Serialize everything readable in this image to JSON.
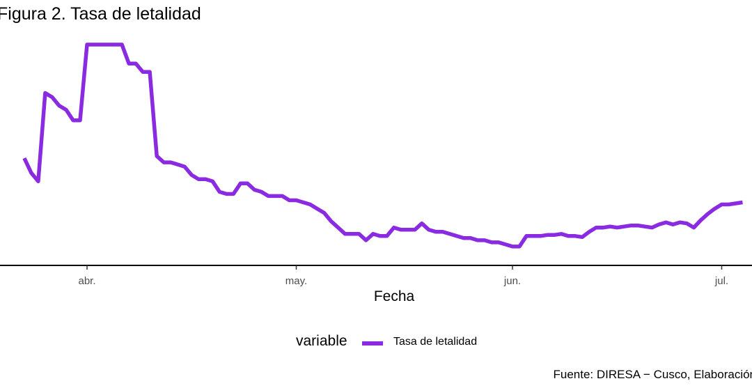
{
  "chart_data": {
    "type": "line",
    "title": "Figura 2. Tasa de letalidad",
    "xlabel": "Fecha",
    "ylabel": "",
    "caption": "Fuente: DIRESA − Cusco, Elaboración",
    "legend": {
      "title": "variable",
      "position": "bottom"
    },
    "grid": false,
    "x_ticks": [
      {
        "label": "abr.",
        "date": "2020-04-01"
      },
      {
        "label": "may.",
        "date": "2020-05-01"
      },
      {
        "label": "jun.",
        "date": "2020-06-01"
      },
      {
        "label": "jul.",
        "date": "2020-07-01"
      }
    ],
    "xlim": [
      "2020-03-20",
      "2020-07-05"
    ],
    "ylim": [
      0,
      10
    ],
    "colors": {
      "series": "#8a2be2",
      "axis": "#000000"
    },
    "series": [
      {
        "name": "Tasa de letalidad",
        "x": [
          "2020-03-23",
          "2020-03-24",
          "2020-03-25",
          "2020-03-26",
          "2020-03-27",
          "2020-03-28",
          "2020-03-29",
          "2020-03-30",
          "2020-03-31",
          "2020-04-01",
          "2020-04-02",
          "2020-04-03",
          "2020-04-04",
          "2020-04-05",
          "2020-04-06",
          "2020-04-07",
          "2020-04-08",
          "2020-04-09",
          "2020-04-10",
          "2020-04-11",
          "2020-04-12",
          "2020-04-13",
          "2020-04-14",
          "2020-04-15",
          "2020-04-16",
          "2020-04-17",
          "2020-04-18",
          "2020-04-19",
          "2020-04-20",
          "2020-04-21",
          "2020-04-22",
          "2020-04-23",
          "2020-04-24",
          "2020-04-25",
          "2020-04-26",
          "2020-04-27",
          "2020-04-28",
          "2020-04-29",
          "2020-04-30",
          "2020-05-01",
          "2020-05-02",
          "2020-05-03",
          "2020-05-04",
          "2020-05-05",
          "2020-05-06",
          "2020-05-07",
          "2020-05-08",
          "2020-05-09",
          "2020-05-10",
          "2020-05-11",
          "2020-05-12",
          "2020-05-13",
          "2020-05-14",
          "2020-05-15",
          "2020-05-16",
          "2020-05-17",
          "2020-05-18",
          "2020-05-19",
          "2020-05-20",
          "2020-05-21",
          "2020-05-22",
          "2020-05-23",
          "2020-05-24",
          "2020-05-25",
          "2020-05-26",
          "2020-05-27",
          "2020-05-28",
          "2020-05-29",
          "2020-05-30",
          "2020-05-31",
          "2020-06-01",
          "2020-06-02",
          "2020-06-03",
          "2020-06-04",
          "2020-06-05",
          "2020-06-06",
          "2020-06-07",
          "2020-06-08",
          "2020-06-09",
          "2020-06-10",
          "2020-06-11",
          "2020-06-12",
          "2020-06-13",
          "2020-06-14",
          "2020-06-15",
          "2020-06-16",
          "2020-06-17",
          "2020-06-18",
          "2020-06-19",
          "2020-06-20",
          "2020-06-21",
          "2020-06-22",
          "2020-06-23",
          "2020-06-24",
          "2020-06-25",
          "2020-06-26",
          "2020-06-27",
          "2020-06-28",
          "2020-06-29",
          "2020-06-30",
          "2020-07-01",
          "2020-07-02",
          "2020-07-03",
          "2020-07-04"
        ],
        "values": [
          4.6,
          3.9,
          3.5,
          7.7,
          7.5,
          7.1,
          6.9,
          6.4,
          6.4,
          10.0,
          10.0,
          10.0,
          10.0,
          10.0,
          10.0,
          9.1,
          9.1,
          8.7,
          8.7,
          4.7,
          4.4,
          4.4,
          4.3,
          4.2,
          3.8,
          3.6,
          3.6,
          3.5,
          3.0,
          2.9,
          2.9,
          3.4,
          3.4,
          3.1,
          3.0,
          2.8,
          2.8,
          2.8,
          2.6,
          2.6,
          2.5,
          2.4,
          2.2,
          2.0,
          1.6,
          1.3,
          1.0,
          1.0,
          1.0,
          0.7,
          1.0,
          0.9,
          0.9,
          1.3,
          1.2,
          1.2,
          1.2,
          1.5,
          1.2,
          1.1,
          1.1,
          1.0,
          0.9,
          0.8,
          0.8,
          0.7,
          0.7,
          0.6,
          0.6,
          0.5,
          0.4,
          0.4,
          0.9,
          0.9,
          0.9,
          0.95,
          0.95,
          1.0,
          0.9,
          0.9,
          0.85,
          1.1,
          1.3,
          1.3,
          1.35,
          1.3,
          1.35,
          1.4,
          1.4,
          1.35,
          1.3,
          1.45,
          1.55,
          1.45,
          1.55,
          1.5,
          1.3,
          1.65,
          1.95,
          2.2,
          2.4,
          2.4,
          2.45,
          2.5
        ]
      }
    ]
  }
}
